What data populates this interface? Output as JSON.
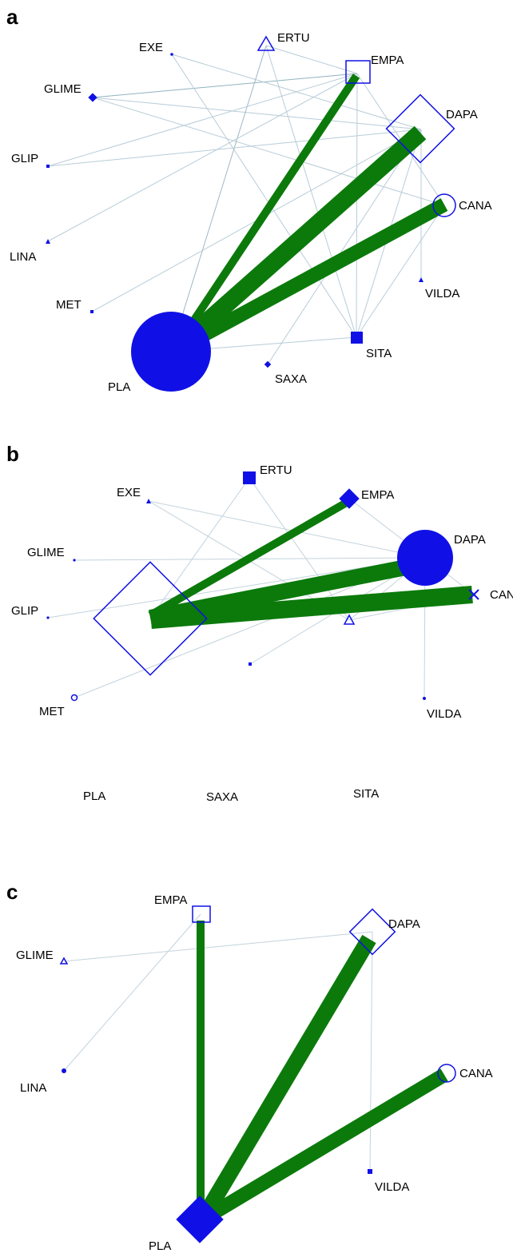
{
  "colors": {
    "node": "#1010e6",
    "strong_edge": "#0b7a0b",
    "thin_edge": "#b8ccd8",
    "background": "#ffffff"
  },
  "panels": [
    {
      "letter": "a",
      "nodes": [
        {
          "id": "EXE",
          "label": "EXE"
        },
        {
          "id": "ERTU",
          "label": "ERTU"
        },
        {
          "id": "EMPA",
          "label": "EMPA"
        },
        {
          "id": "GLIME",
          "label": "GLIME"
        },
        {
          "id": "DAPA",
          "label": "DAPA"
        },
        {
          "id": "GLIP",
          "label": "GLIP"
        },
        {
          "id": "CANA",
          "label": "CANA"
        },
        {
          "id": "LINA",
          "label": "LINA"
        },
        {
          "id": "VILDA",
          "label": "VILDA"
        },
        {
          "id": "MET",
          "label": "MET"
        },
        {
          "id": "SITA",
          "label": "SITA"
        },
        {
          "id": "PLA",
          "label": "PLA"
        },
        {
          "id": "SAXA",
          "label": "SAXA"
        }
      ]
    },
    {
      "letter": "b",
      "nodes": [
        {
          "id": "ERTU",
          "label": "ERTU"
        },
        {
          "id": "EXE",
          "label": "EXE"
        },
        {
          "id": "EMPA",
          "label": "EMPA"
        },
        {
          "id": "GLIME",
          "label": "GLIME"
        },
        {
          "id": "DAPA",
          "label": "DAPA"
        },
        {
          "id": "GLIP",
          "label": "GLIP"
        },
        {
          "id": "CANA",
          "label": "CANA"
        },
        {
          "id": "MET",
          "label": "MET"
        },
        {
          "id": "VILDA",
          "label": "VILDA"
        },
        {
          "id": "PLA",
          "label": "PLA"
        },
        {
          "id": "SAXA",
          "label": "SAXA"
        },
        {
          "id": "SITA",
          "label": "SITA"
        }
      ]
    },
    {
      "letter": "c",
      "nodes": [
        {
          "id": "EMPA",
          "label": "EMPA"
        },
        {
          "id": "DAPA",
          "label": "DAPA"
        },
        {
          "id": "GLIME",
          "label": "GLIME"
        },
        {
          "id": "CANA",
          "label": "CANA"
        },
        {
          "id": "LINA",
          "label": "LINA"
        },
        {
          "id": "VILDA",
          "label": "VILDA"
        },
        {
          "id": "PLA",
          "label": "PLA"
        }
      ]
    }
  ]
}
